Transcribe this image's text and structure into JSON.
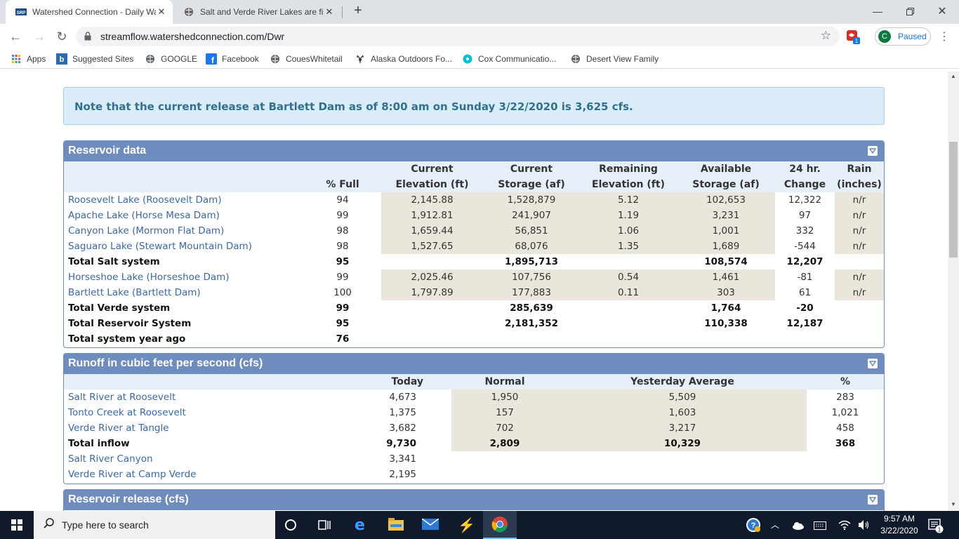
{
  "browser": {
    "tabs": [
      {
        "title": "Watershed Connection - Daily Wa",
        "favicon": "srp-icon"
      },
      {
        "title": "Salt and Verde River Lakes are fill",
        "favicon": "globe-icon"
      }
    ],
    "url": "streamflow.watershedconnection.com/Dwr",
    "profile_initial": "C",
    "profile_status": "Paused",
    "extension_badge": "1",
    "bookmarks": [
      {
        "label": "Apps",
        "icon": "apps-grid-icon"
      },
      {
        "label": "Suggested Sites",
        "icon": "bing-icon"
      },
      {
        "label": "GOOGLE",
        "icon": "globe-icon"
      },
      {
        "label": "Facebook",
        "icon": "facebook-icon"
      },
      {
        "label": "CouesWhitetail",
        "icon": "globe-icon"
      },
      {
        "label": "Alaska Outdoors Fo...",
        "icon": "deer-icon"
      },
      {
        "label": "Cox Communicatio...",
        "icon": "cox-icon"
      },
      {
        "label": "Desert View Family",
        "icon": "globe-icon"
      }
    ]
  },
  "notice": "Note that the current release at Bartlett Dam as of 8:00 am on Sunday 3/22/2020 is 3,625 cfs.",
  "reservoir": {
    "title": "Reservoir data",
    "headers": {
      "pct_full": "% Full",
      "cur_elev_1": "Current",
      "cur_elev_2": "Elevation (ft)",
      "cur_stor_1": "Current",
      "cur_stor_2": "Storage (af)",
      "rem_elev_1": "Remaining",
      "rem_elev_2": "Elevation (ft)",
      "avail_1": "Available",
      "avail_2": "Storage (af)",
      "chg_1": "24 hr.",
      "chg_2": "Change",
      "rain_1": "Rain",
      "rain_2": "(inches)"
    },
    "rows": [
      {
        "name": "Roosevelt Lake (Roosevelt Dam)",
        "pct": "94",
        "elev": "2,145.88",
        "stor": "1,528,879",
        "rem": "5.12",
        "avail": "102,653",
        "chg": "12,322",
        "rain": "n/r"
      },
      {
        "name": "Apache Lake (Horse Mesa Dam)",
        "pct": "99",
        "elev": "1,912.81",
        "stor": "241,907",
        "rem": "1.19",
        "avail": "3,231",
        "chg": "97",
        "rain": "n/r"
      },
      {
        "name": "Canyon Lake (Mormon Flat Dam)",
        "pct": "98",
        "elev": "1,659.44",
        "stor": "56,851",
        "rem": "1.06",
        "avail": "1,001",
        "chg": "332",
        "rain": "n/r"
      },
      {
        "name": "Saguaro Lake (Stewart Mountain Dam)",
        "pct": "98",
        "elev": "1,527.65",
        "stor": "68,076",
        "rem": "1.35",
        "avail": "1,689",
        "chg": "-544",
        "rain": "n/r"
      },
      {
        "name": "Total Salt system",
        "pct": "95",
        "elev": "",
        "stor": "1,895,713",
        "rem": "",
        "avail": "108,574",
        "chg": "12,207",
        "rain": "",
        "total": true
      },
      {
        "name": "Horseshoe Lake (Horseshoe Dam)",
        "pct": "99",
        "elev": "2,025.46",
        "stor": "107,756",
        "rem": "0.54",
        "avail": "1,461",
        "chg": "-81",
        "rain": "n/r"
      },
      {
        "name": "Bartlett Lake (Bartlett Dam)",
        "pct": "100",
        "elev": "1,797.89",
        "stor": "177,883",
        "rem": "0.11",
        "avail": "303",
        "chg": "61",
        "rain": "n/r"
      },
      {
        "name": "Total Verde system",
        "pct": "99",
        "elev": "",
        "stor": "285,639",
        "rem": "",
        "avail": "1,764",
        "chg": "-20",
        "rain": "",
        "total": true
      },
      {
        "name": "Total Reservoir System",
        "pct": "95",
        "elev": "",
        "stor": "2,181,352",
        "rem": "",
        "avail": "110,338",
        "chg": "12,187",
        "rain": "",
        "total": true
      },
      {
        "name": "Total system year ago",
        "pct": "76",
        "elev": "",
        "stor": "",
        "rem": "",
        "avail": "",
        "chg": "",
        "rain": "",
        "total": true
      }
    ]
  },
  "runoff": {
    "title": "Runoff in cubic feet per second (cfs)",
    "headers": {
      "today": "Today",
      "normal": "Normal",
      "yesterday": "Yesterday Average",
      "pct": "%"
    },
    "rows": [
      {
        "name": "Salt River at Roosevelt",
        "today": "4,673",
        "normal": "1,950",
        "yest": "5,509",
        "pct": "283"
      },
      {
        "name": "Tonto Creek at Roosevelt",
        "today": "1,375",
        "normal": "157",
        "yest": "1,603",
        "pct": "1,021"
      },
      {
        "name": "Verde River at Tangle",
        "today": "3,682",
        "normal": "702",
        "yest": "3,217",
        "pct": "458"
      },
      {
        "name": "Total inflow",
        "today": "9,730",
        "normal": "2,809",
        "yest": "10,329",
        "pct": "368",
        "total": true
      },
      {
        "name": "Salt River Canyon",
        "today": "3,341",
        "normal": "",
        "yest": "",
        "pct": ""
      },
      {
        "name": "Verde River at Camp Verde",
        "today": "2,195",
        "normal": "",
        "yest": "",
        "pct": ""
      }
    ]
  },
  "release": {
    "title": "Reservoir release (cfs)"
  },
  "taskbar": {
    "search_placeholder": "Type here to search",
    "time": "9:57 AM",
    "date": "3/22/2020",
    "notification_count": "1"
  }
}
